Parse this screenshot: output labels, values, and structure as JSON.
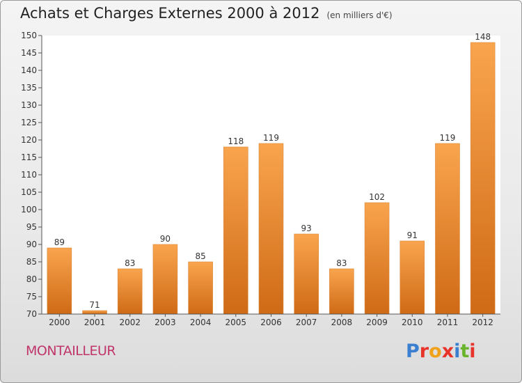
{
  "header": {
    "title": "Achats et Charges Externes 2000 à 2012",
    "subtitle": "(en milliers d'€)"
  },
  "footer": {
    "location": "MONTAILLEUR",
    "logo_text": "Proxiti"
  },
  "colors": {
    "bar_light": "#f9a44e",
    "bar_dark": "#cf6a16",
    "logo_letters": [
      "#3b7fd0",
      "#e8332a",
      "#f0a21b",
      "#e8332a",
      "#3b7fd0",
      "#6ab42d",
      "#e8332a"
    ]
  },
  "chart_data": {
    "type": "bar",
    "title": "Achats et Charges Externes 2000 à 2012",
    "subtitle": "(en milliers d'€)",
    "xlabel": "",
    "ylabel": "",
    "categories": [
      "2000",
      "2001",
      "2002",
      "2003",
      "2004",
      "2005",
      "2006",
      "2007",
      "2008",
      "2009",
      "2010",
      "2011",
      "2012"
    ],
    "values": [
      89,
      71,
      83,
      90,
      85,
      118,
      119,
      93,
      83,
      102,
      91,
      119,
      148
    ],
    "data_labels": [
      "89",
      "71",
      "83",
      "90",
      "85",
      "118",
      "119",
      "93",
      "83",
      "102",
      "91",
      "119",
      "148"
    ],
    "ylim": [
      70,
      150
    ],
    "yticks": [
      70,
      75,
      80,
      85,
      90,
      95,
      100,
      105,
      110,
      115,
      120,
      125,
      130,
      135,
      140,
      145,
      150
    ],
    "grid": false,
    "legend": "none"
  }
}
